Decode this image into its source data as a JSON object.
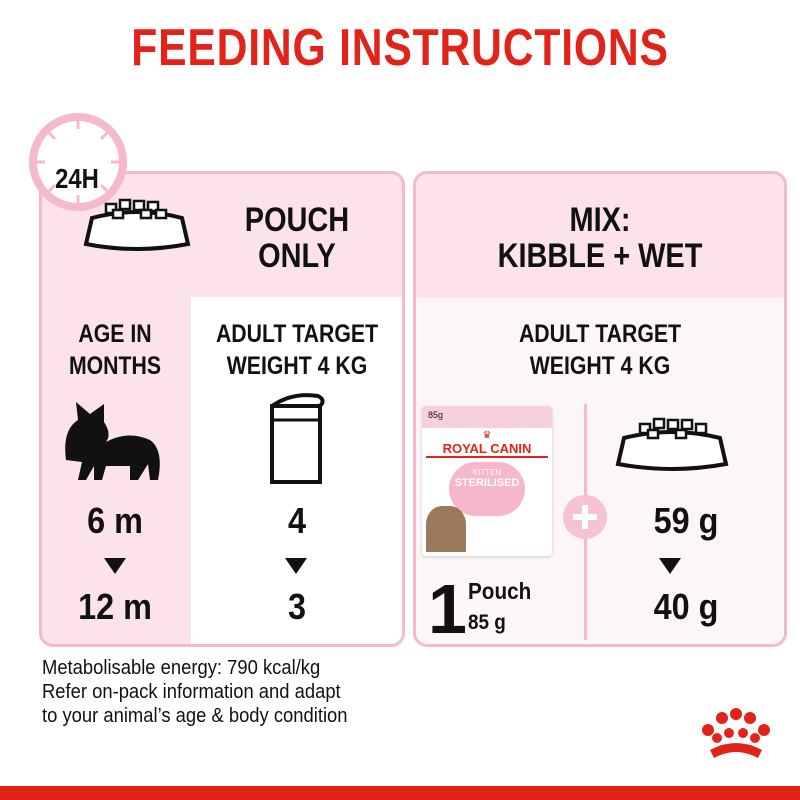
{
  "title": "FEEDING INSTRUCTIONS",
  "clock_label": "24H",
  "pouch_only": {
    "heading_line1": "POUCH",
    "heading_line2": "ONLY",
    "age_label_line1": "AGE IN",
    "age_label_line2": "MONTHS",
    "target_line1": "ADULT TARGET",
    "target_line2": "WEIGHT 4 KG",
    "age_from": "6 m",
    "age_to": "12 m",
    "pouches_from": "4",
    "pouches_to": "3"
  },
  "mix": {
    "heading_line1": "MIX:",
    "heading_line2": "KIBBLE + WET",
    "target_line1": "ADULT TARGET",
    "target_line2": "WEIGHT 4 KG",
    "pouch_count": "1",
    "pouch_word": "Pouch",
    "pouch_weight": "85 g",
    "kibble_from": "59 g",
    "kibble_to": "40 g",
    "product": {
      "weight": "85g",
      "brand": "ROYAL CANIN",
      "line1": "KITTEN",
      "line2": "STERILISED"
    }
  },
  "footer": [
    "Metabolisable energy: 790 kcal/kg",
    "Refer on-pack information and adapt",
    "to your animal’s age & body condition"
  ],
  "colors": {
    "brand_red": "#e2231a",
    "pink": "#fbe2eb",
    "pink_border": "#f5b9cc"
  }
}
